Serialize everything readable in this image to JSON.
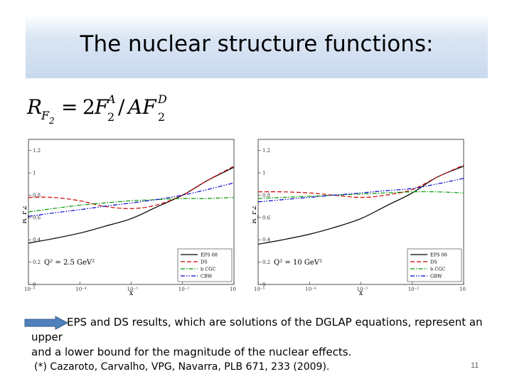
{
  "slide": {
    "title": "The nuclear structure functions:",
    "note_line1": "EPS and DS results, which are solutions of the DGLAP equations,  represent an upper",
    "note_line2": "and a lower bound for the magnitude of the  nuclear  effects.",
    "reference": "(*) Cazaroto, Carvalho, VPG, Navarra, PLB 671, 233 (2009).",
    "page_number": "11",
    "accent_color": "#4f81bd"
  },
  "chart_data": [
    {
      "type": "line",
      "xlabel": "x",
      "ylabel": "R_F2",
      "xscale": "log",
      "xlim": [
        1e-05,
        0.1
      ],
      "ylim": [
        0,
        1.3
      ],
      "x_ticks": [
        "10⁻⁵",
        "10⁻⁴",
        "10⁻³",
        "10⁻²",
        "10⁻¹"
      ],
      "y_ticks": [
        "0",
        "0.2",
        "0.4",
        "0.6",
        "0.8",
        "1",
        "1.2"
      ],
      "annotation": "Q² = 2.5 GeV²",
      "legend_position": "bottom-right",
      "x": [
        1e-05,
        3e-05,
        0.0001,
        0.0003,
        0.001,
        0.003,
        0.01,
        0.03,
        0.1
      ],
      "series": [
        {
          "name": "EPS 08",
          "color": "#000000",
          "dash": "solid",
          "values": [
            0.37,
            0.41,
            0.46,
            0.52,
            0.59,
            0.69,
            0.8,
            0.93,
            1.05
          ]
        },
        {
          "name": "DS",
          "color": "#cc0000",
          "dash": "dashed",
          "values": [
            0.78,
            0.78,
            0.75,
            0.7,
            0.68,
            0.71,
            0.8,
            0.93,
            1.06
          ]
        },
        {
          "name": "b CGC",
          "color": "#009900",
          "dash": "dashdot",
          "values": [
            0.65,
            0.68,
            0.71,
            0.73,
            0.75,
            0.76,
            0.77,
            0.77,
            0.78
          ]
        },
        {
          "name": "CBW",
          "color": "#0000cc",
          "dash": "dashdotdot",
          "values": [
            0.61,
            0.64,
            0.67,
            0.7,
            0.73,
            0.76,
            0.8,
            0.85,
            0.91
          ]
        }
      ]
    },
    {
      "type": "line",
      "xlabel": "x",
      "ylabel": "R_F2",
      "xscale": "log",
      "xlim": [
        1e-05,
        0.1
      ],
      "ylim": [
        0,
        1.3
      ],
      "x_ticks": [
        "10⁻⁵",
        "10⁻⁴",
        "10⁻³",
        "10⁻²",
        "10⁻¹"
      ],
      "y_ticks": [
        "0",
        "0.2",
        "0.4",
        "0.6",
        "0.8",
        "1",
        "1.2"
      ],
      "annotation": "Q² = 10 GeV²",
      "legend_position": "bottom-right",
      "x": [
        1e-05,
        3e-05,
        0.0001,
        0.0003,
        0.001,
        0.003,
        0.01,
        0.03,
        0.1
      ],
      "series": [
        {
          "name": "EPS 08",
          "color": "#000000",
          "dash": "solid",
          "values": [
            0.36,
            0.4,
            0.45,
            0.51,
            0.59,
            0.7,
            0.82,
            0.96,
            1.06
          ]
        },
        {
          "name": "DS",
          "color": "#cc0000",
          "dash": "dashed",
          "values": [
            0.83,
            0.83,
            0.82,
            0.8,
            0.78,
            0.8,
            0.85,
            0.96,
            1.07
          ]
        },
        {
          "name": "b CGC",
          "color": "#009900",
          "dash": "dashdot",
          "values": [
            0.77,
            0.78,
            0.79,
            0.8,
            0.81,
            0.82,
            0.83,
            0.83,
            0.82
          ]
        },
        {
          "name": "GBW",
          "color": "#0000cc",
          "dash": "dashdotdot",
          "values": [
            0.74,
            0.76,
            0.78,
            0.8,
            0.82,
            0.84,
            0.86,
            0.9,
            0.95
          ]
        }
      ]
    }
  ]
}
